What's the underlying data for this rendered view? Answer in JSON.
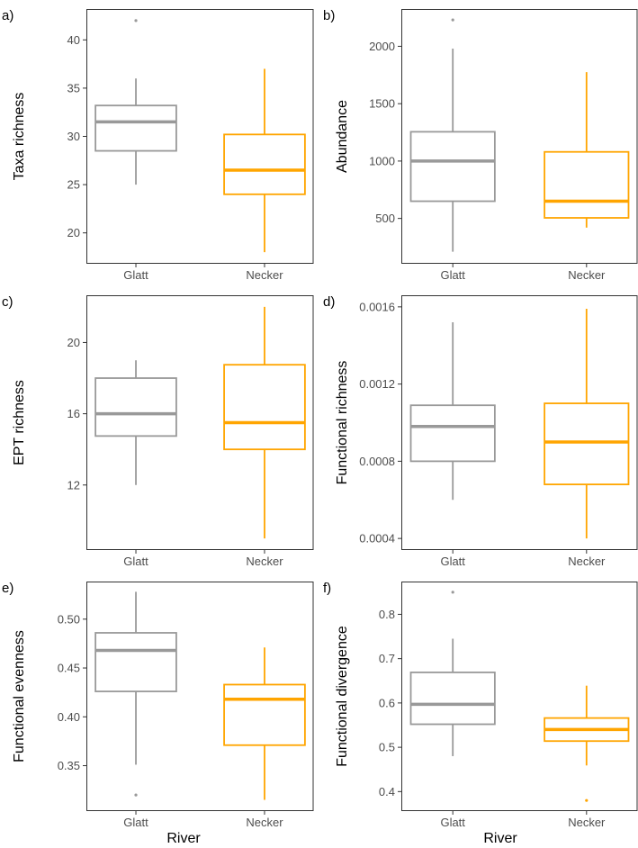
{
  "colors": {
    "glatt": "#999999",
    "necker": "#FFA500",
    "axis": "#333333",
    "frame": "#333333",
    "text": "#4D4D4D",
    "title": "#000000"
  },
  "figure": {
    "xlabel": "River"
  },
  "chart_data": [
    {
      "type": "box",
      "panel": "a)",
      "ylabel": "Taxa richness",
      "categories": [
        "Glatt",
        "Necker"
      ],
      "ylim": [
        16.8,
        43.2
      ],
      "ticks": [
        20,
        25,
        30,
        35,
        40
      ],
      "tick_labels": [
        "20",
        "25",
        "30",
        "35",
        "40"
      ],
      "boxes": [
        {
          "whisker_low": 25,
          "q1": 28.5,
          "median": 31.5,
          "q3": 33.2,
          "whisker_high": 36,
          "outliers": [
            42
          ]
        },
        {
          "whisker_low": 18,
          "q1": 24,
          "median": 26.5,
          "q3": 30.2,
          "whisker_high": 37,
          "outliers": []
        }
      ]
    },
    {
      "type": "box",
      "panel": "b)",
      "ylabel": "Abundance",
      "categories": [
        "Glatt",
        "Necker"
      ],
      "ylim": [
        105,
        2325
      ],
      "ticks": [
        500,
        1000,
        1500,
        2000
      ],
      "tick_labels": [
        "500",
        "1000",
        "1500",
        "2000"
      ],
      "boxes": [
        {
          "whisker_low": 210,
          "q1": 650,
          "median": 1000,
          "q3": 1255,
          "whisker_high": 1980,
          "outliers": [
            2230
          ]
        },
        {
          "whisker_low": 420,
          "q1": 505,
          "median": 650,
          "q3": 1080,
          "whisker_high": 1775,
          "outliers": []
        }
      ]
    },
    {
      "type": "box",
      "panel": "c)",
      "ylabel": "EPT richness",
      "categories": [
        "Glatt",
        "Necker"
      ],
      "ylim": [
        8.35,
        22.65
      ],
      "ticks": [
        12,
        16,
        20
      ],
      "tick_labels": [
        "12",
        "16",
        "20"
      ],
      "boxes": [
        {
          "whisker_low": 12,
          "q1": 14.75,
          "median": 16,
          "q3": 18,
          "whisker_high": 19,
          "outliers": []
        },
        {
          "whisker_low": 9,
          "q1": 14,
          "median": 15.5,
          "q3": 18.75,
          "whisker_high": 22,
          "outliers": []
        }
      ]
    },
    {
      "type": "box",
      "panel": "d)",
      "ylabel": "Functional richness",
      "categories": [
        "Glatt",
        "Necker"
      ],
      "ylim": [
        0.00034,
        0.00166
      ],
      "ticks": [
        0.0004,
        0.0008,
        0.0012,
        0.0016
      ],
      "tick_labels": [
        "0.0004",
        "0.0008",
        "0.0012",
        "0.0016"
      ],
      "boxes": [
        {
          "whisker_low": 0.0006,
          "q1": 0.0008,
          "median": 0.00098,
          "q3": 0.00109,
          "whisker_high": 0.00152,
          "outliers": []
        },
        {
          "whisker_low": 0.0004,
          "q1": 0.00068,
          "median": 0.0009,
          "q3": 0.0011,
          "whisker_high": 0.00159,
          "outliers": []
        }
      ]
    },
    {
      "type": "box",
      "panel": "e)",
      "ylabel": "Functional evenness",
      "categories": [
        "Glatt",
        "Necker"
      ],
      "ylim": [
        0.3035,
        0.5385
      ],
      "ticks": [
        0.35,
        0.4,
        0.45,
        0.5
      ],
      "tick_labels": [
        "0.35",
        "0.40",
        "0.45",
        "0.50"
      ],
      "boxes": [
        {
          "whisker_low": 0.351,
          "q1": 0.426,
          "median": 0.468,
          "q3": 0.486,
          "whisker_high": 0.528,
          "outliers": [
            0.32
          ]
        },
        {
          "whisker_low": 0.315,
          "q1": 0.371,
          "median": 0.418,
          "q3": 0.433,
          "whisker_high": 0.471,
          "outliers": []
        }
      ]
    },
    {
      "type": "box",
      "panel": "f)",
      "ylabel": "Functional divergence",
      "categories": [
        "Glatt",
        "Necker"
      ],
      "ylim": [
        0.356,
        0.874
      ],
      "ticks": [
        0.4,
        0.5,
        0.6,
        0.7,
        0.8
      ],
      "tick_labels": [
        "0.4",
        "0.5",
        "0.6",
        "0.7",
        "0.8"
      ],
      "boxes": [
        {
          "whisker_low": 0.48,
          "q1": 0.552,
          "median": 0.597,
          "q3": 0.669,
          "whisker_high": 0.745,
          "outliers": [
            0.85
          ]
        },
        {
          "whisker_low": 0.459,
          "q1": 0.514,
          "median": 0.54,
          "q3": 0.566,
          "whisker_high": 0.639,
          "outliers": [
            0.38
          ]
        }
      ]
    }
  ]
}
